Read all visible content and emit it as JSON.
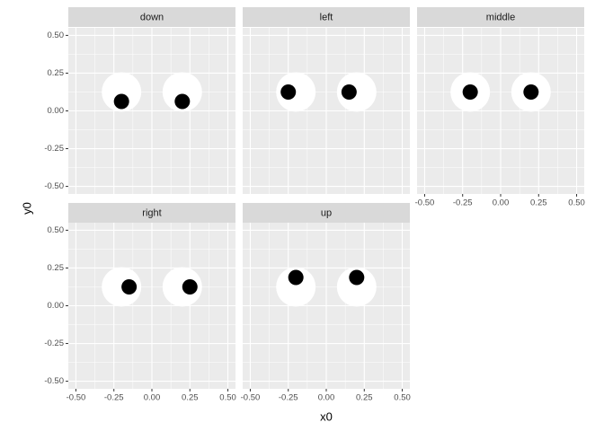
{
  "chart_data": {
    "type": "scatter",
    "x_label": "x0",
    "y_label": "y0",
    "xlim": [
      -0.55,
      0.55
    ],
    "ylim": [
      -0.55,
      0.55
    ],
    "xticks": [
      {
        "value": -0.5,
        "label": "-0.50"
      },
      {
        "value": -0.25,
        "label": "-0.25"
      },
      {
        "value": 0,
        "label": "0.00"
      },
      {
        "value": 0.25,
        "label": "0.25"
      },
      {
        "value": 0.5,
        "label": "0.50"
      }
    ],
    "yticks": [
      {
        "value": -0.5,
        "label": "-0.50"
      },
      {
        "value": -0.25,
        "label": "-0.25"
      },
      {
        "value": 0,
        "label": "0.00"
      },
      {
        "value": 0.25,
        "label": "0.25"
      },
      {
        "value": 0.5,
        "label": "0.50"
      }
    ],
    "grid": true,
    "eye_color": "#ffffff",
    "pupil_color": "#000000",
    "panels": [
      {
        "label": "down",
        "eye_x": [
          -0.2,
          0.2
        ],
        "eye_y": [
          0.125,
          0.125
        ],
        "pupil_x": [
          -0.2,
          0.2
        ],
        "pupil_y": [
          0.0625,
          0.0625
        ]
      },
      {
        "label": "left",
        "eye_x": [
          -0.2,
          0.2
        ],
        "eye_y": [
          0.125,
          0.125
        ],
        "pupil_x": [
          -0.25,
          0.15
        ],
        "pupil_y": [
          0.125,
          0.125
        ]
      },
      {
        "label": "middle",
        "eye_x": [
          -0.2,
          0.2
        ],
        "eye_y": [
          0.125,
          0.125
        ],
        "pupil_x": [
          -0.2,
          0.2
        ],
        "pupil_y": [
          0.125,
          0.125
        ]
      },
      {
        "label": "right",
        "eye_x": [
          -0.2,
          0.2
        ],
        "eye_y": [
          0.125,
          0.125
        ],
        "pupil_x": [
          -0.15,
          0.25
        ],
        "pupil_y": [
          0.125,
          0.125
        ]
      },
      {
        "label": "up",
        "eye_x": [
          -0.2,
          0.2
        ],
        "eye_y": [
          0.125,
          0.125
        ],
        "pupil_x": [
          -0.2,
          0.2
        ],
        "pupil_y": [
          0.1875,
          0.1875
        ]
      }
    ]
  }
}
